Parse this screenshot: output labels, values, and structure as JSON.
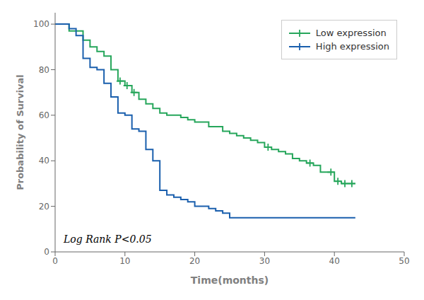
{
  "chart_data": {
    "type": "step",
    "x_label": "Time(months)",
    "y_label": "Probability of Survival",
    "annotation": "Log Rank P<0.05",
    "xlim": [
      0,
      50
    ],
    "ylim": [
      0,
      105
    ],
    "xticks": [
      0,
      10,
      20,
      30,
      40,
      50
    ],
    "yticks": [
      0,
      20,
      40,
      60,
      80,
      100
    ],
    "legend": "upper right",
    "series": [
      {
        "name": "Low expression",
        "color": "#26a65b",
        "marker": "plus",
        "x": [
          0,
          2,
          4,
          5,
          6,
          7,
          8,
          9,
          10,
          11,
          12,
          13,
          14,
          15,
          16,
          18,
          19,
          20,
          22,
          24,
          25,
          26,
          27,
          28,
          29,
          30,
          31,
          32,
          33,
          34,
          35,
          36,
          37,
          38,
          40,
          41,
          42,
          43
        ],
        "values": [
          100,
          97,
          93,
          90,
          88,
          86,
          80,
          75,
          73,
          70,
          67,
          65,
          63,
          61,
          60,
          59,
          58,
          57,
          55,
          53,
          52,
          51,
          50,
          49,
          48,
          46,
          45,
          44,
          43,
          41,
          40,
          39,
          38,
          35,
          31,
          30,
          30,
          30
        ],
        "censors_x": [
          9.3,
          10.3,
          11.3,
          30.5,
          36.5,
          39.5,
          40.5,
          41.5,
          42.5
        ],
        "censors_values": [
          75,
          73,
          70,
          46,
          39,
          35,
          31,
          30,
          30
        ]
      },
      {
        "name": "High expression",
        "color": "#1a5fad",
        "marker": "plus",
        "x": [
          0,
          2,
          3,
          4,
          5,
          6,
          7,
          8,
          9,
          10,
          11,
          12,
          13,
          14,
          15,
          16,
          17,
          18,
          19,
          20,
          21,
          22,
          23,
          24,
          25,
          34,
          43
        ],
        "values": [
          100,
          98,
          95,
          85,
          81,
          80,
          74,
          68,
          61,
          60,
          54,
          53,
          45,
          40,
          27,
          25,
          24,
          23,
          22,
          20,
          20,
          19,
          18,
          17,
          15,
          15,
          15
        ]
      }
    ]
  }
}
